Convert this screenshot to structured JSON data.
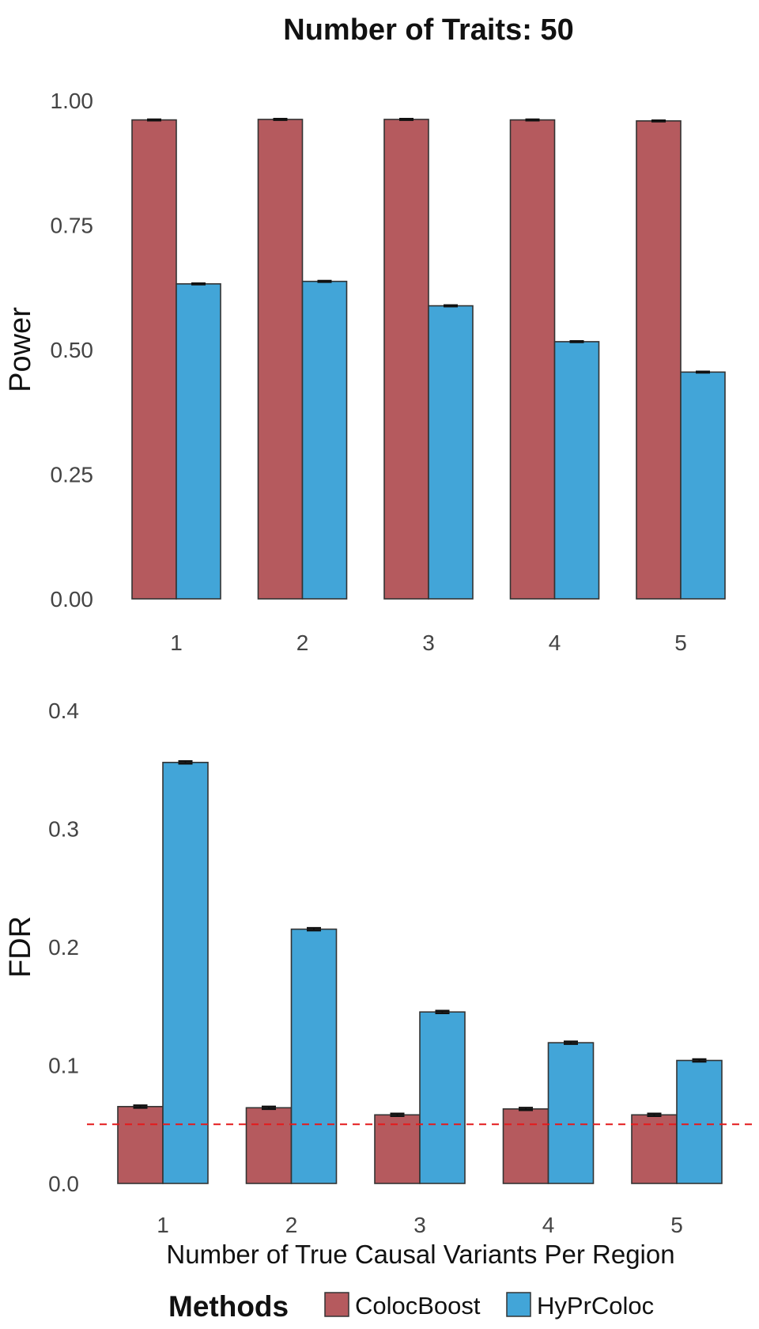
{
  "chart_data": {
    "title": "Number of Traits: 50",
    "xlabel": "Number of True Causal Variants Per Region",
    "legend": {
      "title": "Methods",
      "placement": "bottom",
      "entries": [
        {
          "name": "ColocBoost",
          "color": "#b55a5e"
        },
        {
          "name": "HyPrColoc",
          "color": "#42a5d8"
        }
      ]
    },
    "panels": [
      {
        "type": "bar",
        "ylabel": "Power",
        "categories": [
          "1",
          "2",
          "3",
          "4",
          "5"
        ],
        "ylim": [
          0,
          1.0
        ],
        "yticks": [
          "0.00",
          "0.25",
          "0.50",
          "0.75",
          "1.00"
        ],
        "ytick_values": [
          0,
          0.25,
          0.5,
          0.75,
          1.0
        ],
        "series": [
          {
            "name": "ColocBoost",
            "values": [
              0.961,
              0.962,
              0.962,
              0.961,
              0.959
            ],
            "error": [
              0.001,
              0.001,
              0.001,
              0.001,
              0.001
            ]
          },
          {
            "name": "HyPrColoc",
            "values": [
              0.632,
              0.637,
              0.588,
              0.516,
              0.455
            ],
            "error": [
              0.001,
              0.001,
              0.001,
              0.001,
              0.001
            ]
          }
        ]
      },
      {
        "type": "bar",
        "ylabel": "FDR",
        "categories": [
          "1",
          "2",
          "3",
          "4",
          "5"
        ],
        "ylim": [
          0,
          0.4
        ],
        "yticks": [
          "0.0",
          "0.1",
          "0.2",
          "0.3",
          "0.4"
        ],
        "ytick_values": [
          0,
          0.1,
          0.2,
          0.3,
          0.4
        ],
        "reference_line": {
          "y": 0.05,
          "color": "#e41a1c",
          "style": "dashed"
        },
        "series": [
          {
            "name": "ColocBoost",
            "values": [
              0.065,
              0.064,
              0.058,
              0.063,
              0.058
            ],
            "error": [
              0.001,
              0.001,
              0.001,
              0.001,
              0.001
            ]
          },
          {
            "name": "HyPrColoc",
            "values": [
              0.356,
              0.215,
              0.145,
              0.119,
              0.104
            ],
            "error": [
              0.001,
              0.001,
              0.001,
              0.001,
              0.001
            ]
          }
        ]
      }
    ]
  }
}
